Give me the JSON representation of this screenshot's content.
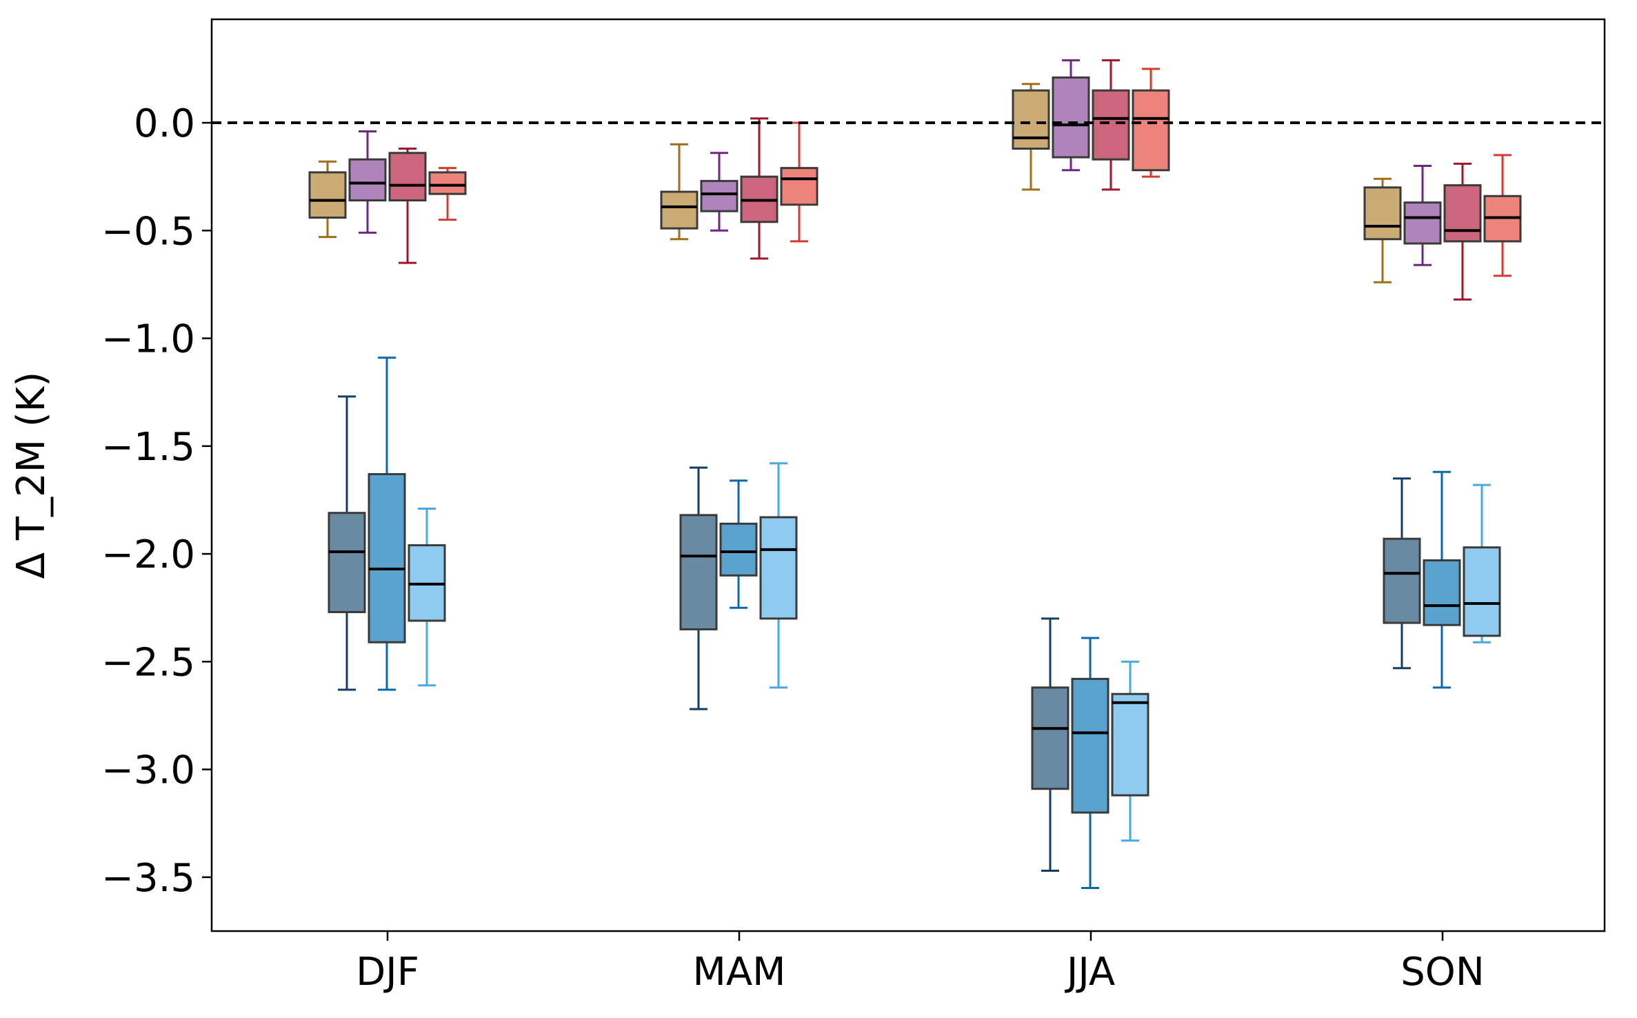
{
  "chart_data": {
    "type": "boxplot",
    "title": "",
    "xlabel": "",
    "ylabel": "Δ T_2M (K)",
    "ylim": [
      -3.75,
      0.48
    ],
    "yticks": [
      0.0,
      -0.5,
      -1.0,
      -1.5,
      -2.0,
      -2.5,
      -3.0,
      -3.5
    ],
    "ytick_labels": [
      "0.0",
      "−0.5",
      "−1.0",
      "−1.5",
      "−2.0",
      "−2.5",
      "−3.0",
      "−3.5"
    ],
    "categories": [
      "DJF",
      "MAM",
      "JJA",
      "SON"
    ],
    "reference_line": {
      "y": 0.0,
      "style": "dashed",
      "color": "#000000"
    },
    "groups": [
      {
        "name": "warm",
        "series": [
          {
            "color": "#b8893e",
            "whisker_color": "#a06d1a"
          },
          {
            "color": "#9055a0",
            "whisker_color": "#6e2585"
          },
          {
            "color": "#b82b4a",
            "whisker_color": "#a0142c"
          },
          {
            "color": "#e4554a",
            "whisker_color": "#d63a2c"
          }
        ],
        "boxes": [
          [
            {
              "min": -0.53,
              "q1": -0.44,
              "median": -0.36,
              "q3": -0.23,
              "max": -0.18
            },
            {
              "min": -0.51,
              "q1": -0.36,
              "median": -0.28,
              "q3": -0.17,
              "max": -0.04
            },
            {
              "min": -0.65,
              "q1": -0.36,
              "median": -0.29,
              "q3": -0.14,
              "max": -0.12
            },
            {
              "min": -0.45,
              "q1": -0.33,
              "median": -0.29,
              "q3": -0.23,
              "max": -0.21
            }
          ],
          [
            {
              "min": -0.54,
              "q1": -0.49,
              "median": -0.39,
              "q3": -0.32,
              "max": -0.1
            },
            {
              "min": -0.5,
              "q1": -0.41,
              "median": -0.33,
              "q3": -0.27,
              "max": -0.14
            },
            {
              "min": -0.63,
              "q1": -0.46,
              "median": -0.36,
              "q3": -0.25,
              "max": 0.02
            },
            {
              "min": -0.55,
              "q1": -0.38,
              "median": -0.26,
              "q3": -0.21,
              "max": 0.0
            }
          ],
          [
            {
              "min": -0.31,
              "q1": -0.12,
              "median": -0.07,
              "q3": 0.15,
              "max": 0.18
            },
            {
              "min": -0.22,
              "q1": -0.16,
              "median": -0.01,
              "q3": 0.21,
              "max": 0.29
            },
            {
              "min": -0.31,
              "q1": -0.17,
              "median": 0.02,
              "q3": 0.15,
              "max": 0.29
            },
            {
              "min": -0.25,
              "q1": -0.22,
              "median": 0.02,
              "q3": 0.15,
              "max": 0.25
            }
          ],
          [
            {
              "min": -0.74,
              "q1": -0.54,
              "median": -0.48,
              "q3": -0.3,
              "max": -0.26
            },
            {
              "min": -0.66,
              "q1": -0.56,
              "median": -0.44,
              "q3": -0.37,
              "max": -0.2
            },
            {
              "min": -0.82,
              "q1": -0.55,
              "median": -0.5,
              "q3": -0.29,
              "max": -0.19
            },
            {
              "min": -0.71,
              "q1": -0.55,
              "median": -0.44,
              "q3": -0.34,
              "max": -0.15
            }
          ]
        ]
      },
      {
        "name": "cold",
        "series": [
          {
            "color": "#2f5d80",
            "whisker_color": "#123e66"
          },
          {
            "color": "#1c7fbd",
            "whisker_color": "#0b68ad"
          },
          {
            "color": "#64b6ea",
            "whisker_color": "#48a8e3"
          }
        ],
        "boxes": [
          [
            {
              "min": -2.63,
              "q1": -2.27,
              "median": -1.99,
              "q3": -1.81,
              "max": -1.27
            },
            {
              "min": -2.63,
              "q1": -2.41,
              "median": -2.07,
              "q3": -1.63,
              "max": -1.09
            },
            {
              "min": -2.61,
              "q1": -2.31,
              "median": -2.14,
              "q3": -1.96,
              "max": -1.79
            }
          ],
          [
            {
              "min": -2.72,
              "q1": -2.35,
              "median": -2.01,
              "q3": -1.82,
              "max": -1.6
            },
            {
              "min": -2.25,
              "q1": -2.1,
              "median": -1.99,
              "q3": -1.86,
              "max": -1.66
            },
            {
              "min": -2.62,
              "q1": -2.3,
              "median": -1.98,
              "q3": -1.83,
              "max": -1.58
            }
          ],
          [
            {
              "min": -3.47,
              "q1": -3.09,
              "median": -2.81,
              "q3": -2.62,
              "max": -2.3
            },
            {
              "min": -3.55,
              "q1": -3.2,
              "median": -2.83,
              "q3": -2.58,
              "max": -2.39
            },
            {
              "min": -3.33,
              "q1": -3.12,
              "median": -2.69,
              "q3": -2.65,
              "max": -2.5
            }
          ],
          [
            {
              "min": -2.53,
              "q1": -2.32,
              "median": -2.09,
              "q3": -1.93,
              "max": -1.65
            },
            {
              "min": -2.62,
              "q1": -2.33,
              "median": -2.24,
              "q3": -2.03,
              "max": -1.62
            },
            {
              "min": -2.41,
              "q1": -2.38,
              "median": -2.23,
              "q3": -1.97,
              "max": -1.68
            }
          ]
        ]
      }
    ]
  }
}
